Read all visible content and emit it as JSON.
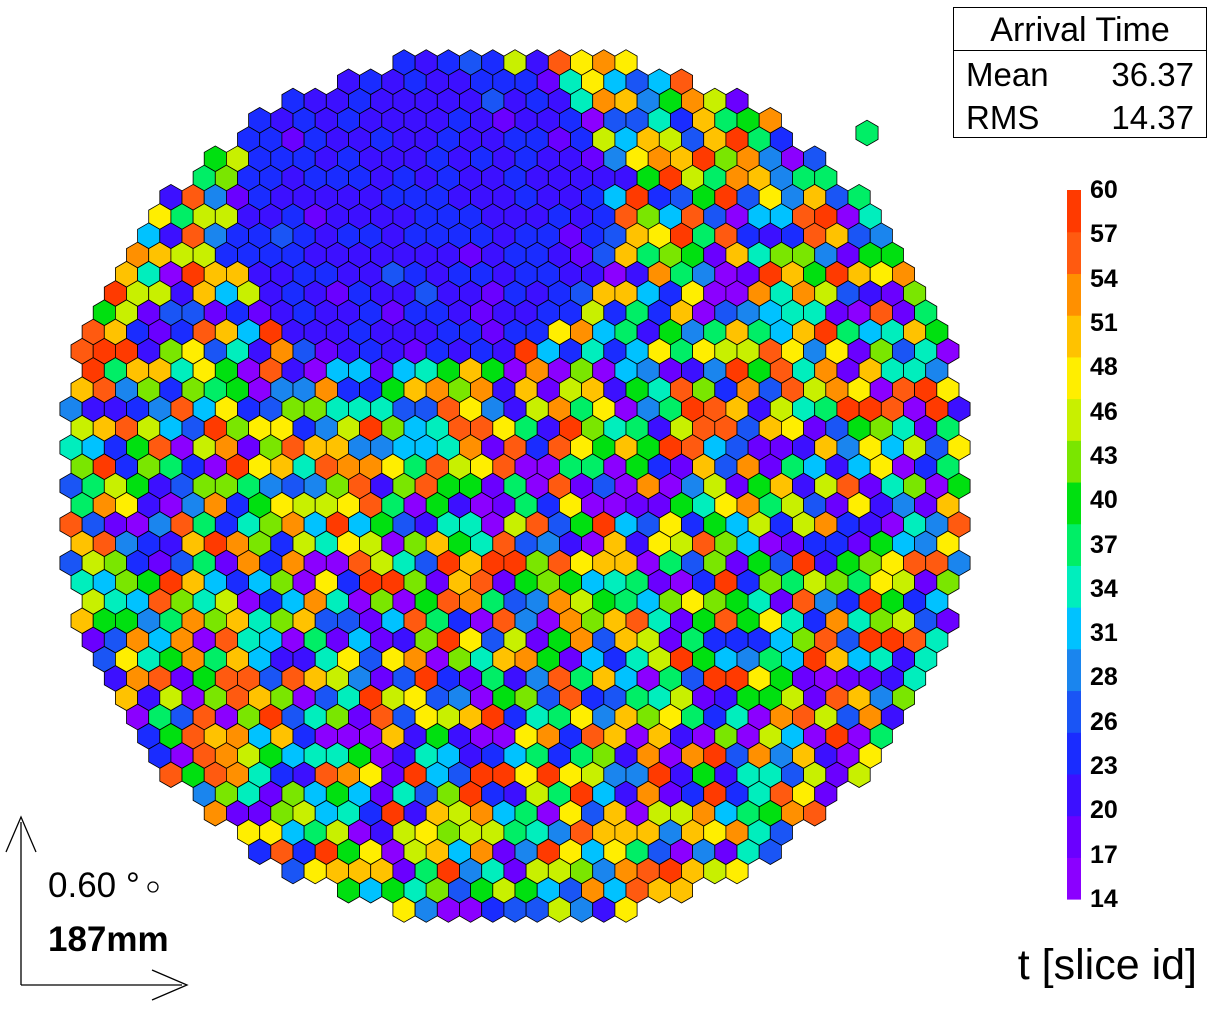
{
  "chart_data": {
    "type": "heatmap",
    "subtype": "hexagonal camera display",
    "title": "",
    "stats": {
      "title": "Arrival Time",
      "rows": [
        {
          "label": "Mean",
          "value": "36.37"
        },
        {
          "label": "RMS",
          "value": "14.37"
        }
      ]
    },
    "z_axis": {
      "title": "t [slice id]",
      "range": [
        14,
        60
      ],
      "tick_labels": [
        "60",
        "57",
        "54",
        "51",
        "48",
        "46",
        "43",
        "40",
        "37",
        "34",
        "31",
        "28",
        "26",
        "23",
        "20",
        "17",
        "14"
      ]
    },
    "scale_indicator": {
      "angle": "0.60 °",
      "length": "187mm"
    },
    "pixel_summary": {
      "region_low_values": "upper centre (about 20-25)",
      "region_high_values": "scattered 14-60 elsewhere",
      "isolated_pixel": "top-right, value about 37"
    },
    "colormap": [
      "#8b00ff",
      "#6a00ff",
      "#3c10ff",
      "#1a2cff",
      "#1a55f5",
      "#1a85ee",
      "#00c2ff",
      "#00eebd",
      "#00ee66",
      "#00e010",
      "#7ae600",
      "#c8f000",
      "#ffee00",
      "#ffc200",
      "#ff9000",
      "#ff5a10",
      "#ff3a00"
    ]
  }
}
